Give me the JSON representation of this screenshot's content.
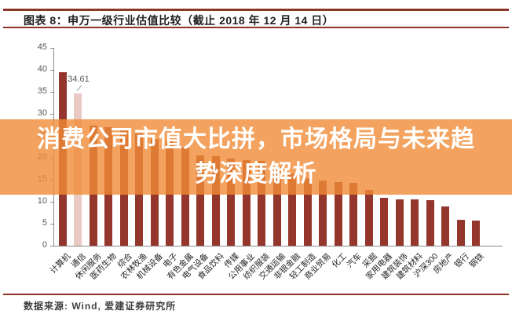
{
  "header": {
    "title": "图表 8：申万一级行业估值比较（截止 2018 年 12 月 14 日）"
  },
  "overlay": {
    "headline_lines": [
      "消费公司市值大比拼，市场格局与未来趋",
      "势深度解析"
    ]
  },
  "footer": {
    "source": "数据来源: Wind, 爱建证券研究所"
  },
  "colors": {
    "bar_dark_red": "#94362b",
    "bar_highlight_pink": "#eac8c3",
    "rule_dark_red": "#8c3626",
    "overlay_orange": "rgba(240,140,55,0.8)",
    "axis_gray": "#8a8a8a",
    "tick_label_gray": "#595959"
  },
  "chart_data": {
    "type": "bar",
    "title": "申万一级行业估值比较（截止 2018 年 12 月 14 日）",
    "categories": [
      "计算机",
      "通信",
      "休闲服务",
      "医药生物",
      "综合",
      "农林牧渔",
      "机械设备",
      "电子",
      "有色金属",
      "电气设备",
      "食品饮料",
      "传媒",
      "公用事业",
      "纺织服装",
      "交通运输",
      "非银金融",
      "轻工制造",
      "商业贸易",
      "化工",
      "汽车",
      "采掘",
      "家用电器",
      "建筑装饰",
      "建筑材料",
      "沪深300",
      "房地产",
      "银行",
      "钢铁"
    ],
    "values": [
      39.4,
      34.61,
      27.3,
      27.0,
      26.4,
      25.5,
      24.3,
      23.7,
      22.5,
      20.6,
      20.3,
      19.8,
      19.5,
      19.2,
      17.8,
      16.5,
      15.4,
      14.8,
      14.5,
      14.3,
      12.7,
      10.9,
      10.6,
      10.5,
      10.4,
      8.9,
      5.9,
      5.7
    ],
    "highlight_index": 1,
    "highlight_label": "34.61",
    "ylim": [
      0,
      45
    ],
    "yticks": [
      0,
      5,
      10,
      15,
      20,
      25,
      30,
      35,
      40,
      45
    ],
    "grid": false,
    "legend": false
  }
}
